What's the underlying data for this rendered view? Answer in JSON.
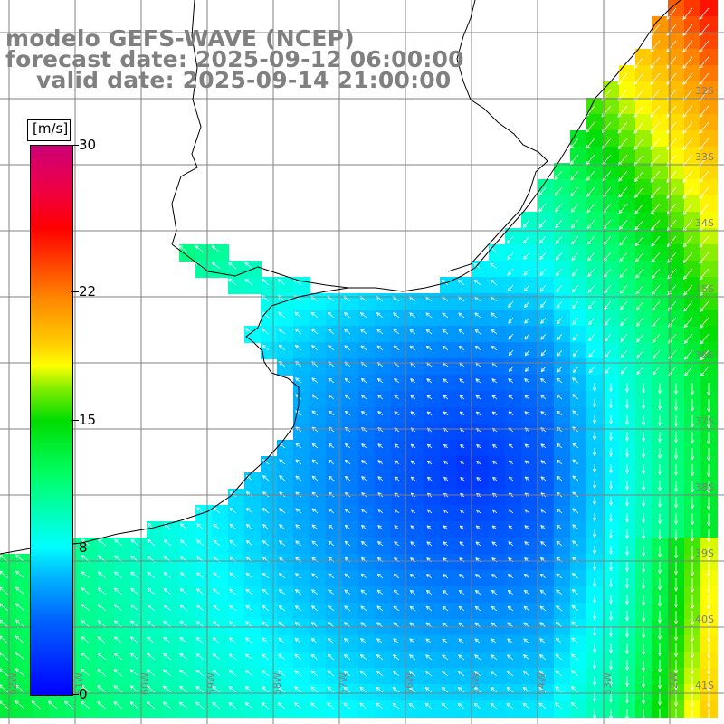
{
  "header": {
    "model": "modelo GEFS-WAVE (NCEP)",
    "forecast": "forecast date: 2025-09-12 06:00:00",
    "valid": "valid date: 2025-09-14 21:00:00"
  },
  "colorbar": {
    "unit": "[m/s]",
    "ticks": [
      {
        "label": "30",
        "value": 30
      },
      {
        "label": "22",
        "value": 22
      },
      {
        "label": "15",
        "value": 15
      },
      {
        "label": "8",
        "value": 8
      },
      {
        "label": "0",
        "value": 0
      }
    ],
    "range": [
      0,
      30
    ]
  },
  "map": {
    "lat_labels": [
      "32S",
      "33S",
      "34S",
      "35S",
      "36S",
      "37S",
      "38S",
      "39S",
      "40S",
      "41S"
    ],
    "lon_labels": [
      "62W",
      "61W",
      "60W",
      "59W",
      "58W",
      "57W",
      "56W",
      "55W",
      "54W",
      "53W",
      "52W"
    ],
    "colors": {
      "land": "#ffffff",
      "coast": "#000000",
      "grid": "#808080",
      "arrow": "#ffffff"
    }
  }
}
